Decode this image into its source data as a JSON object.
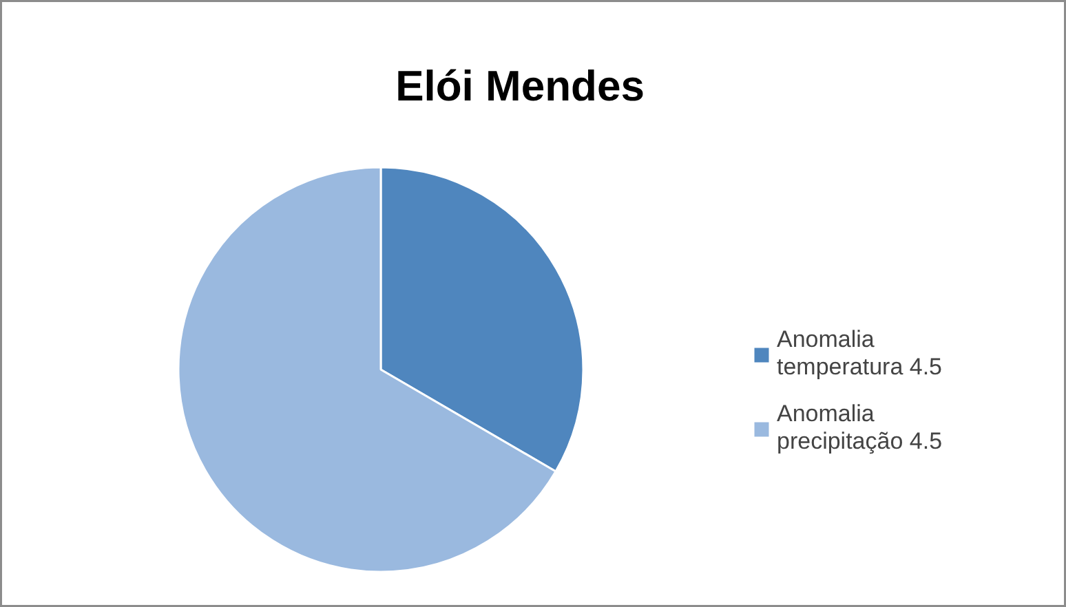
{
  "chart_data": {
    "type": "pie",
    "title": "Elói Mendes",
    "categories": [
      "Anomalia temperatura 4.5",
      "Anomalia precipitação 4.5"
    ],
    "values": [
      33.4,
      66.6
    ],
    "colors": [
      "#4f86be",
      "#9ab9df"
    ],
    "legend": "right"
  }
}
